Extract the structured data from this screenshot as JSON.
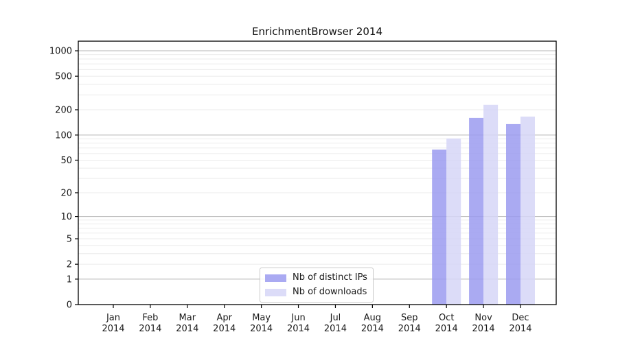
{
  "chart_data": {
    "type": "bar",
    "title": "EnrichmentBrowser 2014",
    "categories": [
      "Jan",
      "Feb",
      "Mar",
      "Apr",
      "May",
      "Jun",
      "Jul",
      "Aug",
      "Sep",
      "Oct",
      "Nov",
      "Dec"
    ],
    "category_year": "2014",
    "series": [
      {
        "name": "Nb of distinct IPs",
        "color": "#9b9bf0",
        "values": [
          0,
          0,
          0,
          0,
          0,
          0,
          0,
          0,
          0,
          67,
          160,
          135
        ]
      },
      {
        "name": "Nb of downloads",
        "color": "#d6d6f7",
        "values": [
          0,
          0,
          0,
          0,
          0,
          0,
          0,
          0,
          0,
          91,
          229,
          166
        ]
      }
    ],
    "y_scale": "log1p",
    "y_ticks": [
      0,
      1,
      2,
      5,
      10,
      20,
      50,
      100,
      200,
      500,
      1000
    ],
    "ylim": [
      0,
      1300
    ],
    "grid": true,
    "legend_position": "lower center",
    "xlabel": "",
    "ylabel": ""
  },
  "colors": {
    "grid_minor": "#ebebeb",
    "grid_major": "#b5b5b5",
    "axis": "#000000",
    "text": "#1a1a1a",
    "bar_opacity": 0.85
  }
}
